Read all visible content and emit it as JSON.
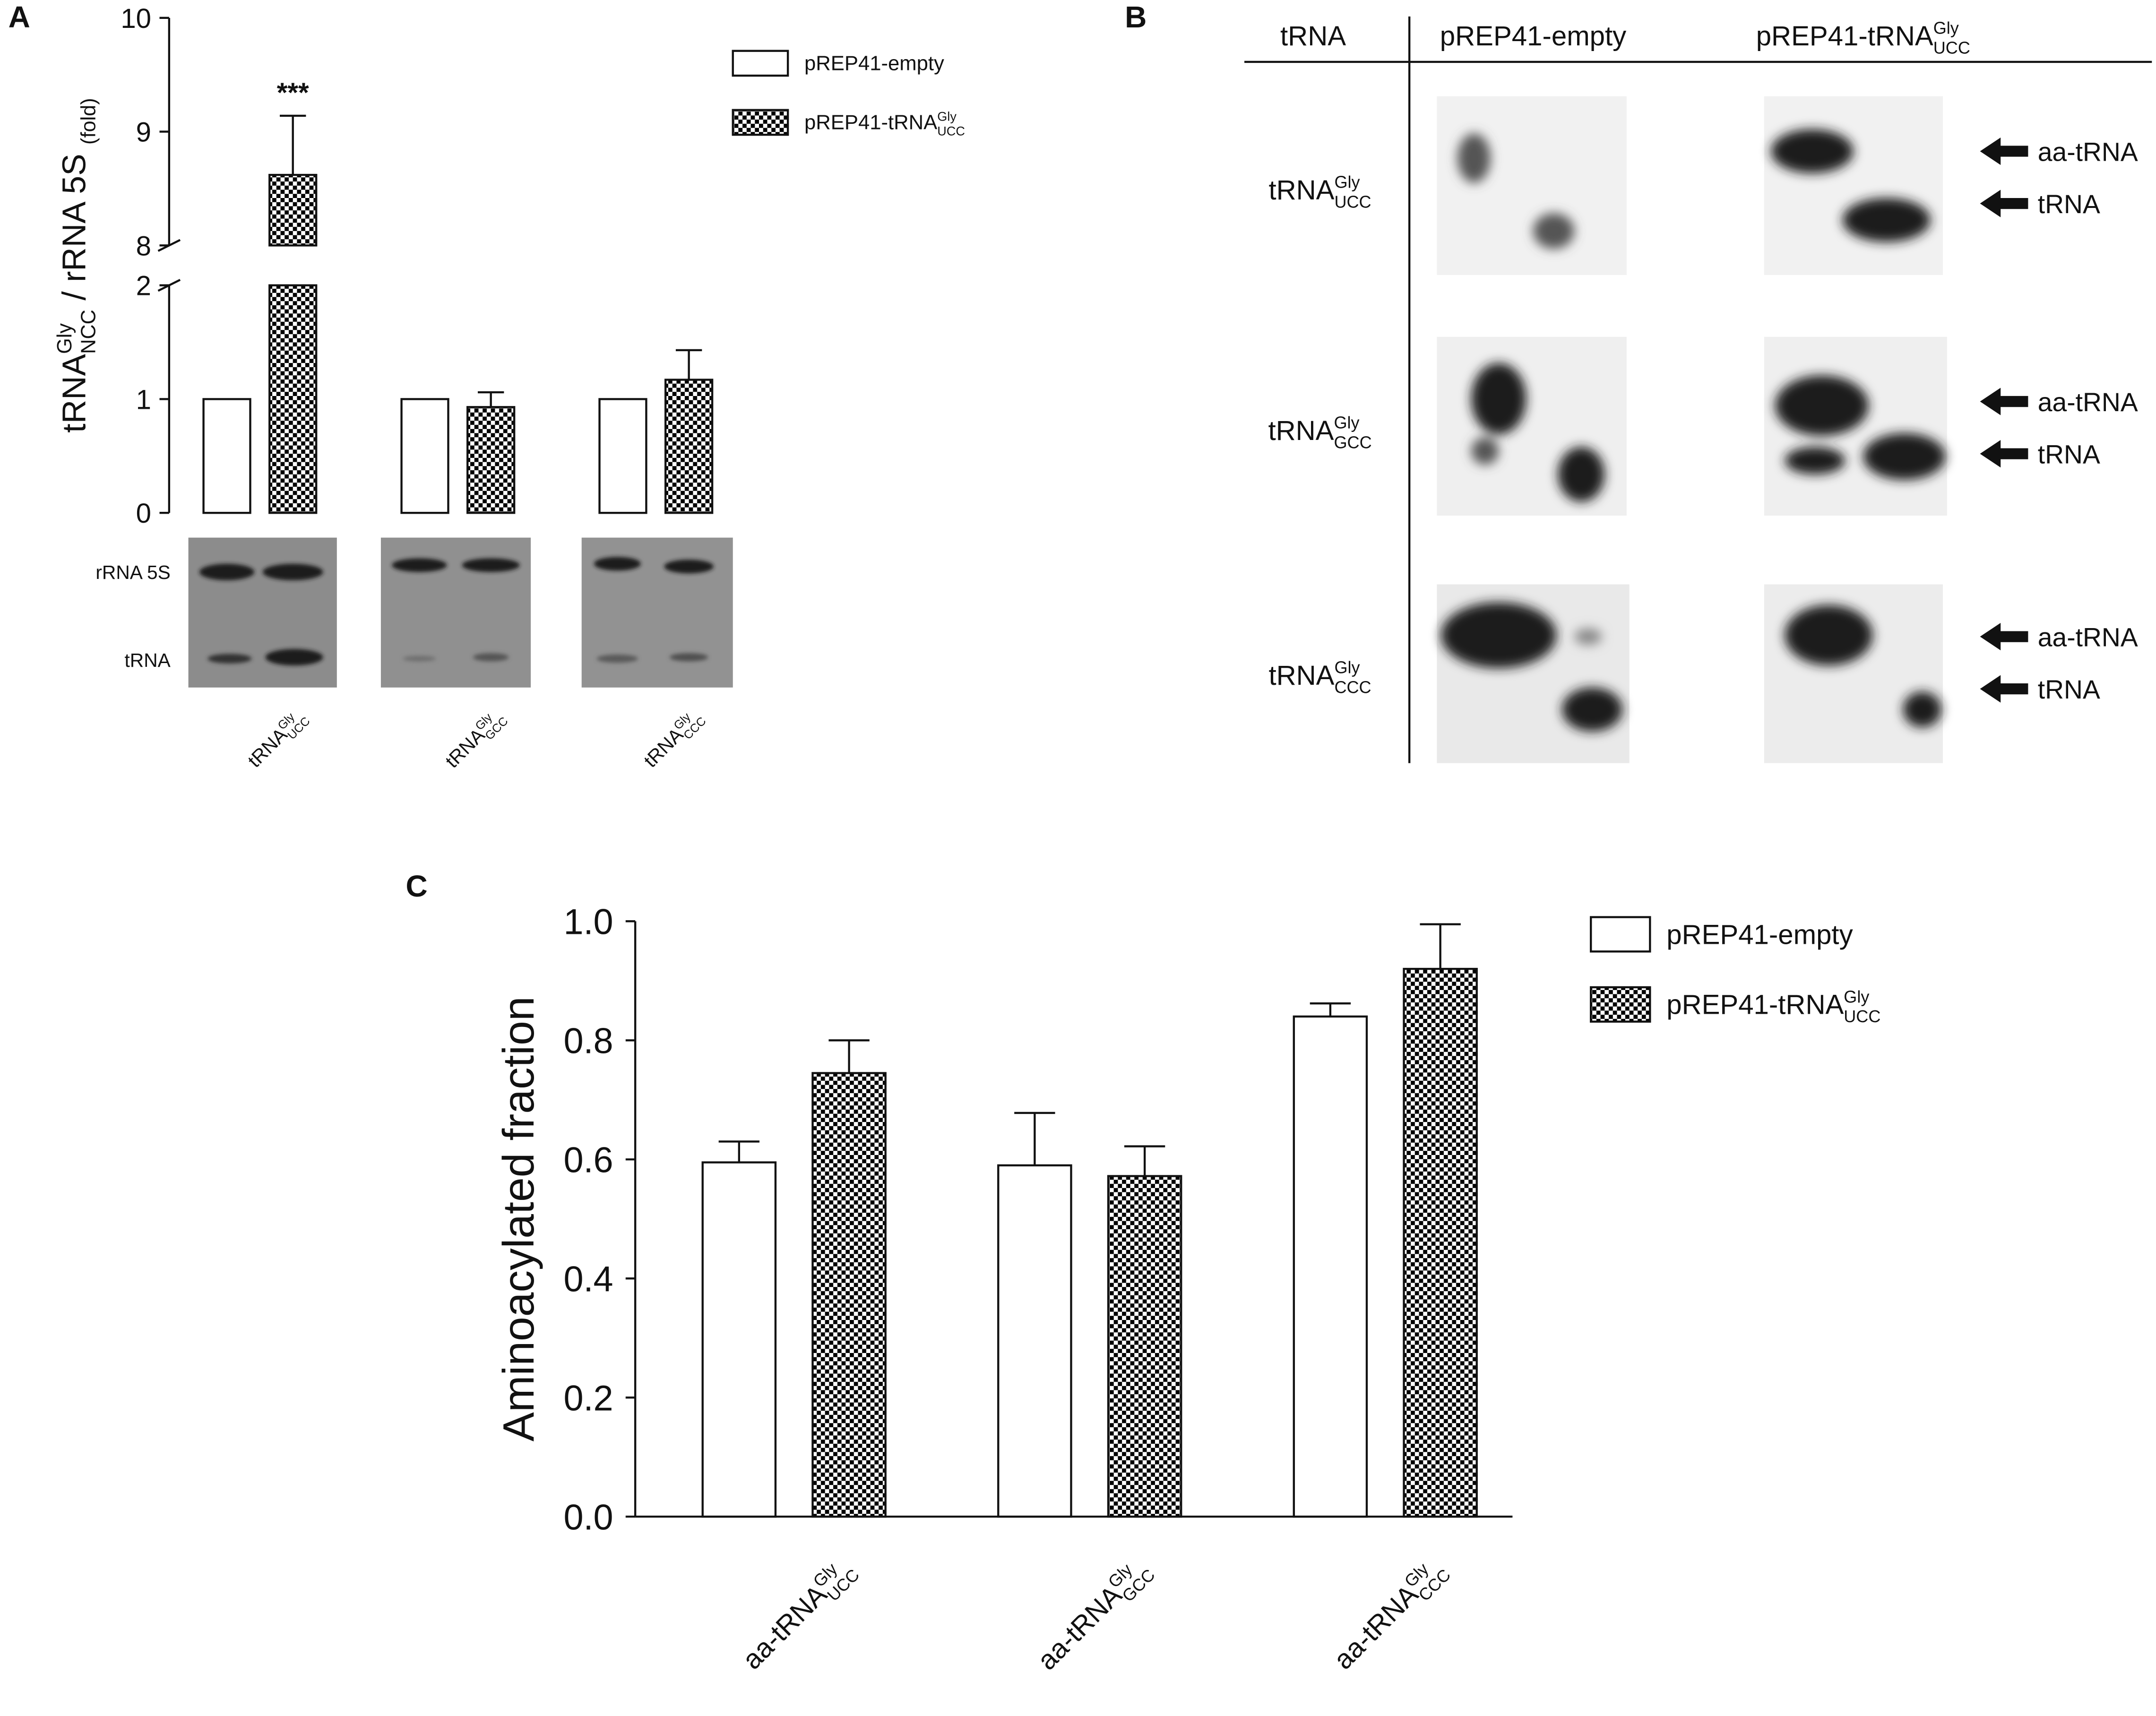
{
  "chart_data": [
    {
      "type": "bar",
      "panel": "A",
      "ylabel": [
        {
          "text": "tRNA"
        },
        {
          "sup": "Gly"
        },
        {
          "sub": "NCC"
        },
        {
          "text": " / rRNA 5S "
        },
        {
          "sub": "(fold)"
        }
      ],
      "categories": [
        [
          {
            "text": "tRNA"
          },
          {
            "sup": "Gly"
          },
          {
            "sub": "UCC"
          }
        ],
        [
          {
            "text": "tRNA"
          },
          {
            "sup": "Gly"
          },
          {
            "sub": "GCC"
          }
        ],
        [
          {
            "text": "tRNA"
          },
          {
            "sup": "Gly"
          },
          {
            "sub": "CCC"
          }
        ]
      ],
      "series": [
        {
          "name": [
            {
              "text": "pREP41-empty"
            }
          ],
          "color": "#ffffff",
          "values": [
            1,
            1,
            1
          ]
        },
        {
          "name": [
            {
              "text": "pREP41-tRNA"
            },
            {
              "sup": "Gly"
            },
            {
              "sub": "UCC"
            }
          ],
          "color": "#000000",
          "pattern": "checkered",
          "values": [
            8.62,
            0.93,
            1.17
          ],
          "errors": [
            0.52,
            0.13,
            0.26
          ]
        }
      ],
      "ylim": [
        0,
        10
      ],
      "y_break": [
        2,
        8
      ],
      "yticks": [
        0,
        1,
        2,
        8,
        9,
        10
      ],
      "annotation": "***",
      "blot_labels": [
        "rRNA 5S",
        "tRNA"
      ],
      "legend": "upper right"
    },
    {
      "type": "bar",
      "panel": "C",
      "ylabel": "Aminoacylated fraction",
      "categories": [
        [
          {
            "text": "aa-tRNA"
          },
          {
            "sup": "Gly"
          },
          {
            "sub": "UCC"
          }
        ],
        [
          {
            "text": "aa-tRNA"
          },
          {
            "sup": "Gly"
          },
          {
            "sub": "GCC"
          }
        ],
        [
          {
            "text": "aa-tRNA"
          },
          {
            "sup": "Gly"
          },
          {
            "sub": "CCC"
          }
        ]
      ],
      "series": [
        {
          "name": [
            {
              "text": "pREP41-empty"
            }
          ],
          "color": "#ffffff",
          "values": [
            0.595,
            0.59,
            0.84
          ],
          "errors": [
            0.035,
            0.088,
            0.022
          ]
        },
        {
          "name": [
            {
              "text": "pREP41-tRNA"
            },
            {
              "sup": "Gly"
            },
            {
              "sub": "UCC"
            }
          ],
          "color": "#000000",
          "pattern": "checkered",
          "values": [
            0.745,
            0.572,
            0.92
          ],
          "errors": [
            0.055,
            0.05,
            0.075
          ]
        }
      ],
      "ylim": [
        0,
        1
      ],
      "yticks": [
        {
          "value": 0,
          "label": "0.0"
        },
        {
          "value": 0.2,
          "label": "0.2"
        },
        {
          "value": 0.4,
          "label": "0.4"
        },
        {
          "value": 0.6,
          "label": "0.6"
        },
        {
          "value": 0.8,
          "label": "0.8"
        },
        {
          "value": 1,
          "label": "1.0"
        }
      ],
      "legend": "upper right"
    }
  ],
  "blot_panel": {
    "panel": "B",
    "header": [
      [
        {
          "text": "tRNA"
        }
      ],
      [
        {
          "text": "pREP41-empty"
        }
      ],
      [
        {
          "text": "pREP41-tRNA"
        },
        {
          "sup": "Gly"
        },
        {
          "sub": "UCC"
        }
      ]
    ],
    "rows": [
      {
        "label": [
          {
            "text": "tRNA"
          },
          {
            "sup": "Gly"
          },
          {
            "sub": "UCC"
          }
        ],
        "bands": [
          "aa-tRNA",
          "tRNA"
        ]
      },
      {
        "label": [
          {
            "text": "tRNA"
          },
          {
            "sup": "Gly"
          },
          {
            "sub": "GCC"
          }
        ],
        "bands": [
          "aa-tRNA",
          "tRNA"
        ]
      },
      {
        "label": [
          {
            "text": "tRNA"
          },
          {
            "sup": "Gly"
          },
          {
            "sub": "CCC"
          }
        ],
        "bands": [
          "aa-tRNA",
          "tRNA"
        ]
      }
    ]
  }
}
